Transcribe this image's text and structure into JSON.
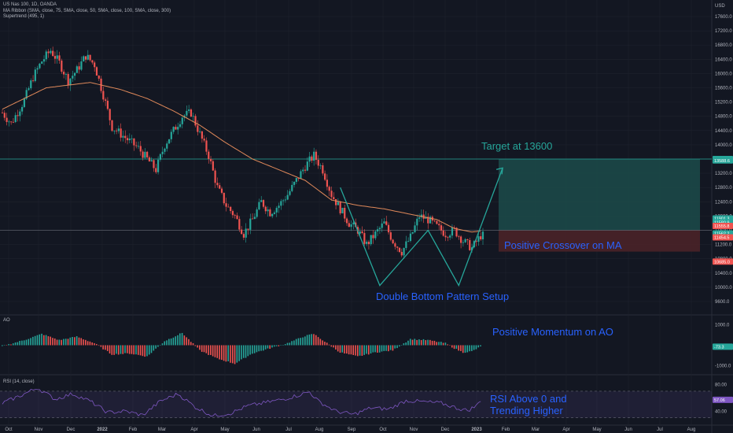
{
  "header": {
    "symbol_line": "US Nas 100, 1D, OANDA",
    "ma_line": "MA Ribbon (SMA, close, 75, SMA, close, 50, SMA, close, 100, SMA, close, 300)",
    "supertrend_line": "Supertrend (495, 1)",
    "currency": "USD"
  },
  "panes": {
    "ao_label": "AO",
    "rsi_label": "RSI (14, close)"
  },
  "colors": {
    "background": "#131722",
    "grid": "#1e222d",
    "bull": "#26a69a",
    "bear": "#ef5350",
    "ma": "#e0895a",
    "annotation": "#2962ff",
    "target_text": "#26a69a",
    "profit_zone": "#1c4b4a",
    "loss_zone": "#4a2228",
    "rsi_band": "#7e57c2",
    "rsi_line": "#7e57c2"
  },
  "annotations": {
    "target": "Target at 13600",
    "crossover": "Positive Crossover on MA",
    "double_bottom": "Double Bottom Pattern Setup",
    "momentum": "Positive Momentum on AO",
    "rsi_line1": "RSI Above 0 and",
    "rsi_line2": "Trending Higher"
  },
  "price_tags": [
    {
      "label": "13600.0",
      "value": 13600,
      "color": "#26a69a"
    },
    {
      "label": "13588.6",
      "value": 13560,
      "color": "#26a69a"
    },
    {
      "label": "11901.3",
      "value": 11930,
      "color": "#26a69a"
    },
    {
      "label": "11580.9",
      "value": 11820,
      "color": "#26a69a"
    },
    {
      "label": "11555.8",
      "value": 11720,
      "color": "#ef5350"
    },
    {
      "label": "11562.2",
      "value": 11510,
      "color": "#26a69a"
    },
    {
      "label": "11454.5",
      "value": 11400,
      "color": "#ef5350"
    },
    {
      "label": "10685.0",
      "value": 10720,
      "color": "#ef5350"
    }
  ],
  "ao_tag": "-73.3",
  "rsi_tag": "57.06",
  "chart_data": {
    "type": "candlestick",
    "x_ticks": [
      "Oct",
      "Nov",
      "Dec",
      "2022",
      "Feb",
      "Mar",
      "Apr",
      "May",
      "Jun",
      "Jul",
      "Aug",
      "Sep",
      "Oct",
      "Nov",
      "Dec",
      "2023",
      "Feb",
      "Mar",
      "Apr",
      "May",
      "Jun",
      "Jul",
      "Aug"
    ],
    "y_ticks": [
      9600,
      10000,
      10400,
      10800,
      11200,
      11600,
      12000,
      12400,
      12800,
      13200,
      13600,
      14000,
      14400,
      14800,
      15200,
      15600,
      16000,
      16400,
      16800,
      17200,
      17600
    ],
    "y_range": [
      9400,
      17800
    ],
    "ao_ticks": [
      1000,
      -1000
    ],
    "ao_range": [
      -1400,
      1400
    ],
    "rsi_ticks": [
      80,
      40
    ],
    "rsi_range": [
      25,
      90
    ],
    "rsi_band": [
      30,
      70
    ],
    "price_path": [
      [
        0,
        14900
      ],
      [
        2,
        14600
      ],
      [
        5,
        15250
      ],
      [
        7,
        15900
      ],
      [
        9,
        16350
      ],
      [
        11,
        16650
      ],
      [
        13,
        16300
      ],
      [
        15,
        15800
      ],
      [
        17,
        16100
      ],
      [
        19,
        16500
      ],
      [
        21,
        16250
      ],
      [
        23,
        15400
      ],
      [
        25,
        14500
      ],
      [
        27,
        14300
      ],
      [
        29,
        14100
      ],
      [
        31,
        13900
      ],
      [
        33,
        13600
      ],
      [
        35,
        13300
      ],
      [
        37,
        14000
      ],
      [
        39,
        14400
      ],
      [
        41,
        14800
      ],
      [
        43,
        14900
      ],
      [
        45,
        14300
      ],
      [
        47,
        13700
      ],
      [
        49,
        12800
      ],
      [
        51,
        12300
      ],
      [
        53,
        12000
      ],
      [
        55,
        11500
      ],
      [
        57,
        11900
      ],
      [
        59,
        12400
      ],
      [
        61,
        12100
      ],
      [
        63,
        12300
      ],
      [
        65,
        12600
      ],
      [
        67,
        13000
      ],
      [
        69,
        13400
      ],
      [
        71,
        13700
      ],
      [
        73,
        13300
      ],
      [
        75,
        12600
      ],
      [
        77,
        12200
      ],
      [
        79,
        11800
      ],
      [
        81,
        11600
      ],
      [
        83,
        11200
      ],
      [
        85,
        11500
      ],
      [
        87,
        11800
      ],
      [
        89,
        11300
      ],
      [
        91,
        11000
      ],
      [
        93,
        11400
      ],
      [
        95,
        12000
      ],
      [
        97,
        11900
      ],
      [
        99,
        11700
      ],
      [
        101,
        11500
      ],
      [
        103,
        11600
      ],
      [
        105,
        11300
      ],
      [
        107,
        11100
      ],
      [
        109,
        11450
      ]
    ],
    "ma_path": [
      [
        0,
        15000
      ],
      [
        10,
        15600
      ],
      [
        20,
        15750
      ],
      [
        27,
        15550
      ],
      [
        33,
        15300
      ],
      [
        39,
        14950
      ],
      [
        45,
        14550
      ],
      [
        51,
        14050
      ],
      [
        57,
        13600
      ],
      [
        63,
        13300
      ],
      [
        69,
        13000
      ],
      [
        75,
        12450
      ],
      [
        81,
        12300
      ],
      [
        87,
        12200
      ],
      [
        93,
        12050
      ],
      [
        99,
        11900
      ],
      [
        103,
        11650
      ],
      [
        107,
        11550
      ],
      [
        109,
        11580
      ]
    ],
    "ao_path": [
      [
        0,
        -50
      ],
      [
        5,
        250
      ],
      [
        9,
        550
      ],
      [
        13,
        250
      ],
      [
        17,
        420
      ],
      [
        21,
        100
      ],
      [
        25,
        -450
      ],
      [
        29,
        -400
      ],
      [
        33,
        -550
      ],
      [
        37,
        200
      ],
      [
        41,
        600
      ],
      [
        45,
        -250
      ],
      [
        49,
        -650
      ],
      [
        53,
        -900
      ],
      [
        57,
        -400
      ],
      [
        61,
        -150
      ],
      [
        65,
        100
      ],
      [
        69,
        450
      ],
      [
        71,
        550
      ],
      [
        73,
        250
      ],
      [
        77,
        -350
      ],
      [
        81,
        -550
      ],
      [
        85,
        -350
      ],
      [
        89,
        -250
      ],
      [
        93,
        300
      ],
      [
        97,
        250
      ],
      [
        101,
        100
      ],
      [
        103,
        -150
      ],
      [
        105,
        -350
      ],
      [
        107,
        -300
      ],
      [
        109,
        -73
      ]
    ],
    "rsi_path": [
      [
        0,
        52
      ],
      [
        4,
        63
      ],
      [
        8,
        75
      ],
      [
        12,
        58
      ],
      [
        16,
        66
      ],
      [
        20,
        55
      ],
      [
        24,
        38
      ],
      [
        28,
        40
      ],
      [
        32,
        34
      ],
      [
        36,
        55
      ],
      [
        40,
        66
      ],
      [
        44,
        46
      ],
      [
        48,
        33
      ],
      [
        52,
        37
      ],
      [
        56,
        48
      ],
      [
        60,
        53
      ],
      [
        64,
        58
      ],
      [
        68,
        65
      ],
      [
        70,
        69
      ],
      [
        72,
        55
      ],
      [
        76,
        40
      ],
      [
        80,
        35
      ],
      [
        84,
        45
      ],
      [
        88,
        43
      ],
      [
        92,
        56
      ],
      [
        96,
        54
      ],
      [
        100,
        52
      ],
      [
        104,
        44
      ],
      [
        106,
        41
      ],
      [
        108,
        48
      ],
      [
        109,
        57
      ]
    ],
    "projection": {
      "double_bottom_points": [
        [
          77,
          12800
        ],
        [
          86,
          10050
        ],
        [
          97,
          11600
        ],
        [
          104,
          10050
        ],
        [
          114,
          13350
        ]
      ],
      "target": 13600,
      "entry": 11600,
      "stop": 11000
    }
  }
}
